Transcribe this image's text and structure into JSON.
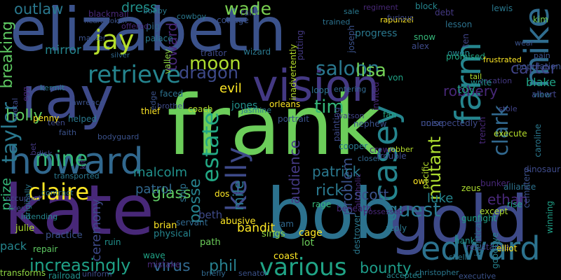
{
  "words": [
    {
      "text": "frank",
      "color": "#6ccd5a"
    },
    {
      "text": "elizabeth",
      "color": "#3b528b"
    },
    {
      "text": "kate",
      "color": "#482878"
    },
    {
      "text": "bob",
      "color": "#2c728e"
    },
    {
      "text": "gold",
      "color": "#3e4a89"
    },
    {
      "text": "ray",
      "color": "#3e4a89"
    },
    {
      "text": "vision",
      "color": "#443983"
    },
    {
      "text": "howard",
      "color": "#31688e"
    },
    {
      "text": "farm",
      "color": "#25858e"
    },
    {
      "text": "mike",
      "color": "#2f6c8e"
    },
    {
      "text": "edward",
      "color": "#2c728e"
    },
    {
      "text": "various",
      "color": "#20a486"
    },
    {
      "text": "clark",
      "color": "#31688e"
    },
    {
      "text": "retrieve",
      "color": "#25848e"
    },
    {
      "text": "jay",
      "color": "#b5de2b"
    },
    {
      "text": "claire",
      "color": "#fde725"
    },
    {
      "text": "increasingly",
      "color": "#1fa187"
    },
    {
      "text": "casey",
      "color": "#25858e"
    },
    {
      "text": "kelly",
      "color": "#3e4a89"
    },
    {
      "text": "taylor",
      "color": "#2a788e"
    },
    {
      "text": "mine",
      "color": "#35b779"
    },
    {
      "text": "estate",
      "color": "#22a884"
    },
    {
      "text": "guest",
      "color": "#2a788e"
    },
    {
      "text": "saloon",
      "color": "#2a788e"
    },
    {
      "text": "moon",
      "color": "#addc30"
    },
    {
      "text": "dragon",
      "color": "#3e4a89"
    },
    {
      "text": "outlaw",
      "color": "#2a788e"
    },
    {
      "text": "dress",
      "color": "#21918c"
    },
    {
      "text": "wade",
      "color": "#7ad151"
    },
    {
      "text": "lisa",
      "color": "#73d056"
    },
    {
      "text": "carter",
      "color": "#404387"
    },
    {
      "text": "breaking",
      "color": "#5ec962"
    },
    {
      "text": "posse",
      "color": "#26828e"
    },
    {
      "text": "mutant",
      "color": "#addc30"
    },
    {
      "text": "problem",
      "color": "#3b528b"
    },
    {
      "text": "tim",
      "color": "#35b779"
    },
    {
      "text": "virus",
      "color": "#31688e"
    },
    {
      "text": "phil",
      "color": "#277f8e"
    },
    {
      "text": "bounty",
      "color": "#1e9c89"
    },
    {
      "text": "glass",
      "color": "#5ec962"
    },
    {
      "text": "rick",
      "color": "#2a788e"
    },
    {
      "text": "scott",
      "color": "#3b528b"
    },
    {
      "text": "luke",
      "color": "#25858e"
    },
    {
      "text": "ethan",
      "color": "#482878"
    },
    {
      "text": "robbery",
      "color": "#482878"
    },
    {
      "text": "holly",
      "color": "#5ec962"
    },
    {
      "text": "evil",
      "color": "#fde725"
    },
    {
      "text": "blake",
      "color": "#20a486"
    },
    {
      "text": "toy",
      "color": "#1fa187"
    },
    {
      "text": "patrol",
      "color": "#31688e"
    },
    {
      "text": "malcolm",
      "color": "#21918c"
    },
    {
      "text": "mile",
      "color": "#2a788e"
    },
    {
      "text": "audience",
      "color": "#443983"
    },
    {
      "text": "patrick",
      "color": "#2a788e"
    },
    {
      "text": "bandit",
      "color": "#fde725"
    },
    {
      "text": "mirror",
      "color": "#25858e"
    },
    {
      "text": "ceremony",
      "color": "#3e4a89"
    },
    {
      "text": "beth",
      "color": "#3e4a89"
    },
    {
      "text": "prize",
      "color": "#35b779"
    },
    {
      "text": "jones",
      "color": "#21918c"
    },
    {
      "text": "toward",
      "color": "#482878"
    },
    {
      "text": "pack",
      "color": "#25858e"
    },
    {
      "text": "julie",
      "color": "#addc30"
    },
    {
      "text": "practice",
      "color": "#3b528b"
    },
    {
      "text": "repair",
      "color": "#5ec962"
    },
    {
      "text": "railroad",
      "color": "#21918c"
    },
    {
      "text": "transforms",
      "color": "#8fd744"
    },
    {
      "text": "uniform",
      "color": "#3e4a89"
    },
    {
      "text": "sings",
      "color": "#8fd744"
    },
    {
      "text": "cage",
      "color": "#fde725"
    },
    {
      "text": "lot",
      "color": "#6ccd5a"
    },
    {
      "text": "path",
      "color": "#6ccd5a"
    },
    {
      "text": "coast",
      "color": "#fde725"
    },
    {
      "text": "briefly",
      "color": "#31688e"
    },
    {
      "text": "senator",
      "color": "#3b528b"
    },
    {
      "text": "physical",
      "color": "#25858e"
    },
    {
      "text": "brian",
      "color": "#fde725"
    },
    {
      "text": "wave",
      "color": "#20a486"
    },
    {
      "text": "mistake",
      "color": "#482878"
    },
    {
      "text": "abusive",
      "color": "#fde725"
    },
    {
      "text": "servant",
      "color": "#31688e"
    },
    {
      "text": "ruin",
      "color": "#21918c"
    },
    {
      "text": "ram",
      "color": "#31688e"
    },
    {
      "text": "hank",
      "color": "#21918c"
    },
    {
      "text": "except",
      "color": "#addc30"
    },
    {
      "text": "rise",
      "color": "#1fa187"
    },
    {
      "text": "shell",
      "color": "#2a788e"
    },
    {
      "text": "gunfight",
      "color": "#1fa187"
    },
    {
      "text": "resistance",
      "color": "#443983"
    },
    {
      "text": "elliot",
      "color": "#fde725"
    },
    {
      "text": "reply",
      "color": "#2a788e"
    },
    {
      "text": "destroyer",
      "color": "#2a788e"
    },
    {
      "text": "accepted",
      "color": "#25858e"
    },
    {
      "text": "christopher",
      "color": "#2a788e"
    },
    {
      "text": "executive",
      "color": "#3b528b"
    },
    {
      "text": "identical",
      "color": "#2c728e"
    },
    {
      "text": "goodbye",
      "color": "#26828e"
    },
    {
      "text": "zeus",
      "color": "#addc30"
    },
    {
      "text": "owl",
      "color": "#fde725"
    },
    {
      "text": "pacific",
      "color": "#b5de2b"
    },
    {
      "text": "cooper",
      "color": "#2a788e"
    },
    {
      "text": "alcoholic",
      "color": "#482878"
    },
    {
      "text": "beneath",
      "color": "#482878"
    },
    {
      "text": "rage",
      "color": "#35b779"
    },
    {
      "text": "bunker",
      "color": "#482878"
    },
    {
      "text": "execute",
      "color": "#b5de2b"
    },
    {
      "text": "alliance",
      "color": "#2c728e"
    },
    {
      "text": "cemetery",
      "color": "#3b528b"
    },
    {
      "text": "winning",
      "color": "#1fa187"
    },
    {
      "text": "trench",
      "color": "#482878"
    },
    {
      "text": "dinosaur",
      "color": "#3e4a89"
    },
    {
      "text": "albert",
      "color": "#404387"
    },
    {
      "text": "stole",
      "color": "#404387"
    },
    {
      "text": "noise",
      "color": "#3b528b"
    },
    {
      "text": "unexpectedly",
      "color": "#3e4a89"
    },
    {
      "text": "population",
      "color": "#3b528b"
    },
    {
      "text": "caroline",
      "color": "#2a788e"
    },
    {
      "text": "view",
      "color": "#2c728e"
    },
    {
      "text": "vacation",
      "color": "#443983"
    },
    {
      "text": "kim",
      "color": "#73d056"
    },
    {
      "text": "wear",
      "color": "#3b528b"
    },
    {
      "text": "tail",
      "color": "#addc30"
    },
    {
      "text": "pain",
      "color": "#3b528b"
    },
    {
      "text": "write",
      "color": "#21918c"
    },
    {
      "text": "owen",
      "color": "#25858e"
    },
    {
      "text": "alex",
      "color": "#3e4a89"
    },
    {
      "text": "snow",
      "color": "#35b779"
    },
    {
      "text": "promised",
      "color": "#22a884"
    },
    {
      "text": "frustrated",
      "color": "#fde725"
    },
    {
      "text": "lewis",
      "color": "#2a788e"
    },
    {
      "text": "debt",
      "color": "#443983"
    },
    {
      "text": "lesson",
      "color": "#2c728e"
    },
    {
      "text": "ten",
      "color": "#404387"
    },
    {
      "text": "block",
      "color": "#25858e"
    },
    {
      "text": "rapunzel",
      "color": "#fde725"
    },
    {
      "text": "regiment",
      "color": "#482878"
    },
    {
      "text": "furious",
      "color": "#3e4a89"
    },
    {
      "text": "sale",
      "color": "#2a788e"
    },
    {
      "text": "possessed",
      "color": "#482878"
    },
    {
      "text": "progress",
      "color": "#2a788e"
    },
    {
      "text": "joseph",
      "color": "#3b528b"
    },
    {
      "text": "von",
      "color": "#20a486"
    },
    {
      "text": "fan",
      "color": "#22a884"
    },
    {
      "text": "painting",
      "color": "#3e4a89"
    },
    {
      "text": "loop",
      "color": "#2c728e"
    },
    {
      "text": "invited",
      "color": "#482878"
    },
    {
      "text": "watson",
      "color": "#404387"
    },
    {
      "text": "inadvertently",
      "color": "#b5de2b"
    },
    {
      "text": "putting",
      "color": "#443983"
    },
    {
      "text": "trained",
      "color": "#2c728e"
    },
    {
      "text": "entering",
      "color": "#31688e"
    },
    {
      "text": "trouble",
      "color": "#3e4a89"
    },
    {
      "text": "crown",
      "color": "#482878"
    },
    {
      "text": "robber",
      "color": "#b5de2b"
    },
    {
      "text": "closer",
      "color": "#31688e"
    },
    {
      "text": "nephew",
      "color": "#3b528b"
    },
    {
      "text": "portrait",
      "color": "#3b528b"
    },
    {
      "text": "orleans",
      "color": "#fde725"
    },
    {
      "text": "jasmine",
      "color": "#2a788e"
    },
    {
      "text": "rally",
      "color": "#3e4a89"
    },
    {
      "text": "cottage",
      "color": "#3b528b"
    },
    {
      "text": "cowboy",
      "color": "#2a788e"
    },
    {
      "text": "wizard",
      "color": "#2a788e"
    },
    {
      "text": "traitor",
      "color": "#3e4a89"
    },
    {
      "text": "palace",
      "color": "#2a788e"
    },
    {
      "text": "valley",
      "color": "#8fd744"
    },
    {
      "text": "pig",
      "color": "#31688e"
    },
    {
      "text": "offered",
      "color": "#482878"
    },
    {
      "text": "blackmail",
      "color": "#482878"
    },
    {
      "text": "heartbroken",
      "color": "#3b528b"
    },
    {
      "text": "marker",
      "color": "#3b528b"
    },
    {
      "text": "silver",
      "color": "#31688e"
    },
    {
      "text": "bobby",
      "color": "#2a788e"
    },
    {
      "text": "faced",
      "color": "#2c728e"
    },
    {
      "text": "coach",
      "color": "#b5de2b"
    },
    {
      "text": "brothel",
      "color": "#3e4a89"
    },
    {
      "text": "thief",
      "color": "#fde725"
    },
    {
      "text": "edge",
      "color": "#3b528b"
    },
    {
      "text": "lawrence",
      "color": "#3b528b"
    },
    {
      "text": "kermit",
      "color": "#2a788e"
    },
    {
      "text": "egg",
      "color": "#482878"
    },
    {
      "text": "metal",
      "color": "#3e4a89"
    },
    {
      "text": "penny",
      "color": "#fde725"
    },
    {
      "text": "teen",
      "color": "#3e4a89"
    },
    {
      "text": "helped",
      "color": "#2a788e"
    },
    {
      "text": "faith",
      "color": "#3b528b"
    },
    {
      "text": "bodyguard",
      "color": "#3b528b"
    },
    {
      "text": "kit",
      "color": "#443983"
    },
    {
      "text": "bet",
      "color": "#443983"
    },
    {
      "text": "dick",
      "color": "#3e4a89"
    },
    {
      "text": "transported",
      "color": "#2a788e"
    },
    {
      "text": "contract",
      "color": "#2c728e"
    },
    {
      "text": "originally",
      "color": "#2a788e"
    },
    {
      "text": "intending",
      "color": "#25858e"
    },
    {
      "text": "occupied",
      "color": "#3e4a89"
    },
    {
      "text": "fires",
      "color": "#404387"
    },
    {
      "text": "ship",
      "color": "#2c728e"
    },
    {
      "text": "dos",
      "color": "#fde725"
    }
  ]
}
